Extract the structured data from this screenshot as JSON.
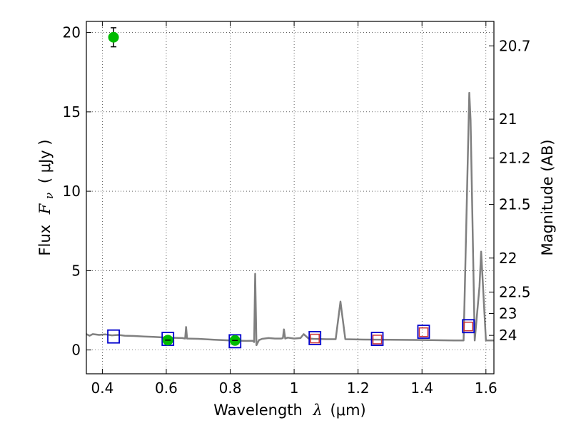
{
  "chart_data": {
    "type": "scatter",
    "title": "",
    "xlabel": "Wavelength",
    "xlabel_symbol": "λ",
    "xlabel_unit": "(μm)",
    "ylabel": "Flux",
    "ylabel_symbol": "F",
    "ylabel_subscript": "ν",
    "ylabel_unit": "( μJy )",
    "y2label": "Magnitude (AB)",
    "xlim": [
      0.35,
      1.625
    ],
    "ylim": [
      -1.5,
      20.7
    ],
    "grid": true,
    "grid_style": "dotted",
    "x_ticks": [
      0.4,
      0.6,
      0.8,
      1.0,
      1.2,
      1.4,
      1.6
    ],
    "x_tick_labels": [
      "0.4",
      "0.6",
      "0.8",
      "1",
      "1.2",
      "1.4",
      "1.6"
    ],
    "y_ticks": [
      0,
      5,
      10,
      15,
      20
    ],
    "y_tick_labels": [
      "0",
      "5",
      "10",
      "15",
      "20"
    ],
    "y2_ticks": [
      {
        "label": "20.7",
        "flux": 19.16
      },
      {
        "label": "21",
        "flux": 14.54
      },
      {
        "label": "21.2",
        "flux": 12.09
      },
      {
        "label": "21.5",
        "flux": 9.17
      },
      {
        "label": "22",
        "flux": 5.79
      },
      {
        "label": "22.5",
        "flux": 3.65
      },
      {
        "label": "23",
        "flux": 2.3
      },
      {
        "label": "24",
        "flux": 0.92
      }
    ],
    "series": [
      {
        "kind": "line",
        "color": "#808080",
        "points": [
          [
            0.35,
            1.0
          ],
          [
            0.36,
            0.9
          ],
          [
            0.37,
            1.0
          ],
          [
            0.39,
            0.95
          ],
          [
            0.41,
            0.98
          ],
          [
            0.43,
            0.92
          ],
          [
            0.45,
            0.95
          ],
          [
            0.47,
            0.9
          ],
          [
            0.5,
            0.88
          ],
          [
            0.53,
            0.85
          ],
          [
            0.56,
            0.83
          ],
          [
            0.6,
            0.78
          ],
          [
            0.65,
            0.75
          ],
          [
            0.659,
            0.72
          ],
          [
            0.662,
            1.45
          ],
          [
            0.665,
            0.72
          ],
          [
            0.7,
            0.7
          ],
          [
            0.75,
            0.65
          ],
          [
            0.8,
            0.6
          ],
          [
            0.85,
            0.57
          ],
          [
            0.87,
            0.58
          ],
          [
            0.875,
            0.5
          ],
          [
            0.878,
            4.8
          ],
          [
            0.882,
            0.3
          ],
          [
            0.89,
            0.62
          ],
          [
            0.9,
            0.7
          ],
          [
            0.92,
            0.75
          ],
          [
            0.94,
            0.72
          ],
          [
            0.96,
            0.72
          ],
          [
            0.965,
            0.75
          ],
          [
            0.968,
            1.3
          ],
          [
            0.972,
            0.72
          ],
          [
            0.98,
            0.78
          ],
          [
            1.0,
            0.72
          ],
          [
            1.02,
            0.75
          ],
          [
            1.03,
            1.0
          ],
          [
            1.045,
            0.72
          ],
          [
            1.06,
            0.7
          ],
          [
            1.1,
            0.68
          ],
          [
            1.13,
            0.68
          ],
          [
            1.145,
            3.05
          ],
          [
            1.16,
            0.68
          ],
          [
            1.2,
            0.66
          ],
          [
            1.3,
            0.65
          ],
          [
            1.4,
            0.63
          ],
          [
            1.5,
            0.6
          ],
          [
            1.53,
            0.6
          ],
          [
            1.533,
            3.0
          ],
          [
            1.548,
            16.2
          ],
          [
            1.552,
            14.5
          ],
          [
            1.565,
            0.6
          ],
          [
            1.58,
            4.0
          ],
          [
            1.585,
            6.2
          ],
          [
            1.6,
            0.6
          ],
          [
            1.625,
            0.6
          ]
        ]
      },
      {
        "kind": "markers",
        "marker": "square",
        "color": "#0000cc",
        "points": [
          [
            0.435,
            0.85
          ],
          [
            0.605,
            0.7
          ],
          [
            0.815,
            0.55
          ],
          [
            1.065,
            0.75
          ],
          [
            1.26,
            0.7
          ],
          [
            1.405,
            1.15
          ],
          [
            1.545,
            1.5
          ]
        ]
      },
      {
        "kind": "markers",
        "marker": "square-small",
        "color": "#cc3333",
        "points": [
          [
            1.065,
            0.72
          ],
          [
            1.26,
            0.66
          ],
          [
            1.405,
            1.12
          ],
          [
            1.545,
            1.48
          ]
        ]
      },
      {
        "kind": "markers",
        "marker": "circle",
        "color": "#00bb00",
        "points": [
          [
            0.435,
            19.7
          ],
          [
            0.605,
            0.62
          ],
          [
            0.815,
            0.6
          ]
        ],
        "errors": [
          0.6,
          0.12,
          0.15
        ]
      }
    ]
  }
}
